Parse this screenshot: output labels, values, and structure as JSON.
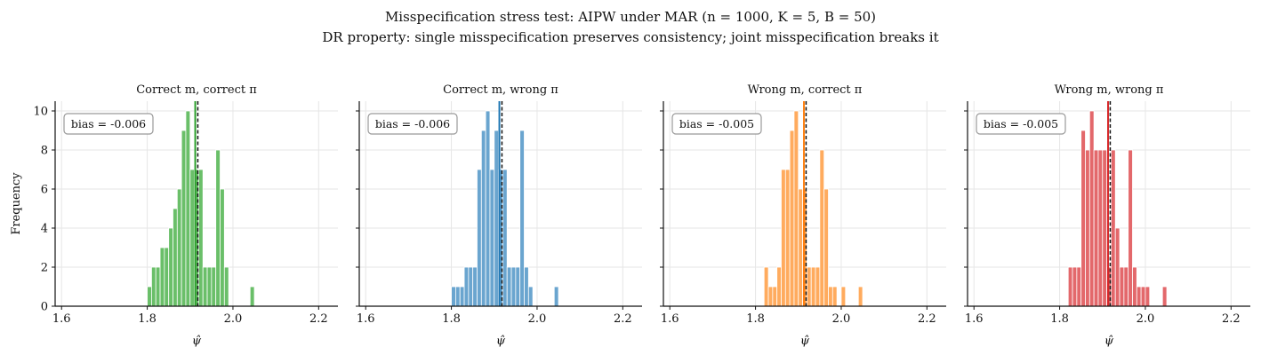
{
  "figure": {
    "title_line1": "Misspecification stress test: AIPW under MAR  (n = 1000, K = 5, B = 50)",
    "title_line2": "DR property: single misspecification preserves consistency; joint misspecification breaks it"
  },
  "chart_data": [
    {
      "type": "bar",
      "title": "Correct m, correct π",
      "xlabel": "ψ̂",
      "ylabel": "Frequency",
      "xlim": [
        1.585,
        2.245
      ],
      "ylim": [
        0,
        10.5
      ],
      "xticks": [
        "1.6",
        "1.8",
        "2.0",
        "2.2"
      ],
      "yticks": [
        "0",
        "2",
        "4",
        "6",
        "8",
        "10"
      ],
      "grid": true,
      "color": "#6abf69",
      "true_value": 1.918,
      "estimate_mean": 1.912,
      "annotation": "bias = -0.006",
      "bins": [
        {
          "x0": 1.8,
          "x1": 1.81,
          "count": 1
        },
        {
          "x0": 1.81,
          "x1": 1.82,
          "count": 2
        },
        {
          "x0": 1.82,
          "x1": 1.83,
          "count": 2
        },
        {
          "x0": 1.83,
          "x1": 1.84,
          "count": 3
        },
        {
          "x0": 1.84,
          "x1": 1.85,
          "count": 3
        },
        {
          "x0": 1.85,
          "x1": 1.86,
          "count": 4
        },
        {
          "x0": 1.86,
          "x1": 1.87,
          "count": 5
        },
        {
          "x0": 1.87,
          "x1": 1.88,
          "count": 6
        },
        {
          "x0": 1.88,
          "x1": 1.89,
          "count": 9
        },
        {
          "x0": 1.89,
          "x1": 1.9,
          "count": 10
        },
        {
          "x0": 1.9,
          "x1": 1.91,
          "count": 7
        },
        {
          "x0": 1.91,
          "x1": 1.92,
          "count": 7
        },
        {
          "x0": 1.92,
          "x1": 1.93,
          "count": 7
        },
        {
          "x0": 1.93,
          "x1": 1.94,
          "count": 2
        },
        {
          "x0": 1.94,
          "x1": 1.95,
          "count": 2
        },
        {
          "x0": 1.95,
          "x1": 1.96,
          "count": 2
        },
        {
          "x0": 1.96,
          "x1": 1.97,
          "count": 8
        },
        {
          "x0": 1.97,
          "x1": 1.98,
          "count": 6
        },
        {
          "x0": 1.98,
          "x1": 1.99,
          "count": 2
        },
        {
          "x0": 2.04,
          "x1": 2.05,
          "count": 1
        }
      ]
    },
    {
      "type": "bar",
      "title": "Correct m, wrong π",
      "xlabel": "ψ̂",
      "ylabel": "",
      "xlim": [
        1.585,
        2.245
      ],
      "ylim": [
        0,
        10.5
      ],
      "xticks": [
        "1.6",
        "1.8",
        "2.0",
        "2.2"
      ],
      "yticks": [
        "0",
        "2",
        "4",
        "6",
        "8",
        "10"
      ],
      "grid": true,
      "color": "#6aa5cf",
      "true_value": 1.918,
      "estimate_mean": 1.912,
      "annotation": "bias = -0.006",
      "bins": [
        {
          "x0": 1.8,
          "x1": 1.81,
          "count": 1
        },
        {
          "x0": 1.81,
          "x1": 1.82,
          "count": 1
        },
        {
          "x0": 1.82,
          "x1": 1.83,
          "count": 1
        },
        {
          "x0": 1.83,
          "x1": 1.84,
          "count": 2
        },
        {
          "x0": 1.84,
          "x1": 1.85,
          "count": 2
        },
        {
          "x0": 1.85,
          "x1": 1.86,
          "count": 2
        },
        {
          "x0": 1.86,
          "x1": 1.87,
          "count": 7
        },
        {
          "x0": 1.87,
          "x1": 1.88,
          "count": 9
        },
        {
          "x0": 1.88,
          "x1": 1.89,
          "count": 10
        },
        {
          "x0": 1.89,
          "x1": 1.9,
          "count": 7
        },
        {
          "x0": 1.9,
          "x1": 1.91,
          "count": 9
        },
        {
          "x0": 1.91,
          "x1": 1.92,
          "count": 7
        },
        {
          "x0": 1.92,
          "x1": 1.93,
          "count": 7
        },
        {
          "x0": 1.93,
          "x1": 1.94,
          "count": 2
        },
        {
          "x0": 1.94,
          "x1": 1.95,
          "count": 2
        },
        {
          "x0": 1.95,
          "x1": 1.96,
          "count": 2
        },
        {
          "x0": 1.96,
          "x1": 1.97,
          "count": 9
        },
        {
          "x0": 1.97,
          "x1": 1.98,
          "count": 2
        },
        {
          "x0": 1.98,
          "x1": 1.99,
          "count": 1
        },
        {
          "x0": 2.04,
          "x1": 2.05,
          "count": 1
        }
      ]
    },
    {
      "type": "bar",
      "title": "Wrong m, correct π",
      "xlabel": "ψ̂",
      "ylabel": "",
      "xlim": [
        1.585,
        2.245
      ],
      "ylim": [
        0,
        10.5
      ],
      "xticks": [
        "1.6",
        "1.8",
        "2.0",
        "2.2"
      ],
      "yticks": [
        "0",
        "2",
        "4",
        "6",
        "8",
        "10"
      ],
      "grid": true,
      "color": "#ffab5e",
      "true_value": 1.918,
      "estimate_mean": 1.913,
      "annotation": "bias = -0.005",
      "bins": [
        {
          "x0": 1.82,
          "x1": 1.83,
          "count": 2
        },
        {
          "x0": 1.83,
          "x1": 1.84,
          "count": 1
        },
        {
          "x0": 1.84,
          "x1": 1.85,
          "count": 1
        },
        {
          "x0": 1.85,
          "x1": 1.86,
          "count": 2
        },
        {
          "x0": 1.86,
          "x1": 1.87,
          "count": 7
        },
        {
          "x0": 1.87,
          "x1": 1.88,
          "count": 7
        },
        {
          "x0": 1.88,
          "x1": 1.89,
          "count": 9
        },
        {
          "x0": 1.89,
          "x1": 1.9,
          "count": 10
        },
        {
          "x0": 1.9,
          "x1": 1.91,
          "count": 6
        },
        {
          "x0": 1.91,
          "x1": 1.92,
          "count": 6
        },
        {
          "x0": 1.92,
          "x1": 1.93,
          "count": 2
        },
        {
          "x0": 1.93,
          "x1": 1.94,
          "count": 2
        },
        {
          "x0": 1.94,
          "x1": 1.95,
          "count": 2
        },
        {
          "x0": 1.95,
          "x1": 1.96,
          "count": 8
        },
        {
          "x0": 1.96,
          "x1": 1.97,
          "count": 6
        },
        {
          "x0": 1.97,
          "x1": 1.98,
          "count": 1
        },
        {
          "x0": 1.98,
          "x1": 1.99,
          "count": 1
        },
        {
          "x0": 2.0,
          "x1": 2.01,
          "count": 1
        },
        {
          "x0": 2.04,
          "x1": 2.05,
          "count": 1
        }
      ]
    },
    {
      "type": "bar",
      "title": "Wrong m, wrong π",
      "xlabel": "ψ̂",
      "ylabel": "",
      "xlim": [
        1.585,
        2.245
      ],
      "ylim": [
        0,
        10.5
      ],
      "xticks": [
        "1.6",
        "1.8",
        "2.0",
        "2.2"
      ],
      "yticks": [
        "0",
        "2",
        "4",
        "6",
        "8",
        "10"
      ],
      "grid": true,
      "color": "#e3686b",
      "true_value": 1.918,
      "estimate_mean": 1.913,
      "annotation": "bias = -0.005",
      "bins": [
        {
          "x0": 1.82,
          "x1": 1.83,
          "count": 2
        },
        {
          "x0": 1.83,
          "x1": 1.84,
          "count": 2
        },
        {
          "x0": 1.84,
          "x1": 1.85,
          "count": 2
        },
        {
          "x0": 1.85,
          "x1": 1.86,
          "count": 9
        },
        {
          "x0": 1.86,
          "x1": 1.87,
          "count": 8
        },
        {
          "x0": 1.87,
          "x1": 1.88,
          "count": 10
        },
        {
          "x0": 1.88,
          "x1": 1.89,
          "count": 8
        },
        {
          "x0": 1.89,
          "x1": 1.9,
          "count": 8
        },
        {
          "x0": 1.9,
          "x1": 1.91,
          "count": 8
        },
        {
          "x0": 1.91,
          "x1": 1.92,
          "count": 2
        },
        {
          "x0": 1.92,
          "x1": 1.93,
          "count": 8
        },
        {
          "x0": 1.93,
          "x1": 1.94,
          "count": 4
        },
        {
          "x0": 1.94,
          "x1": 1.95,
          "count": 2
        },
        {
          "x0": 1.95,
          "x1": 1.96,
          "count": 2
        },
        {
          "x0": 1.96,
          "x1": 1.97,
          "count": 8
        },
        {
          "x0": 1.97,
          "x1": 1.98,
          "count": 2
        },
        {
          "x0": 1.98,
          "x1": 1.99,
          "count": 1
        },
        {
          "x0": 1.99,
          "x1": 2.0,
          "count": 1
        },
        {
          "x0": 2.0,
          "x1": 2.01,
          "count": 1
        },
        {
          "x0": 2.04,
          "x1": 2.05,
          "count": 1
        }
      ]
    }
  ]
}
